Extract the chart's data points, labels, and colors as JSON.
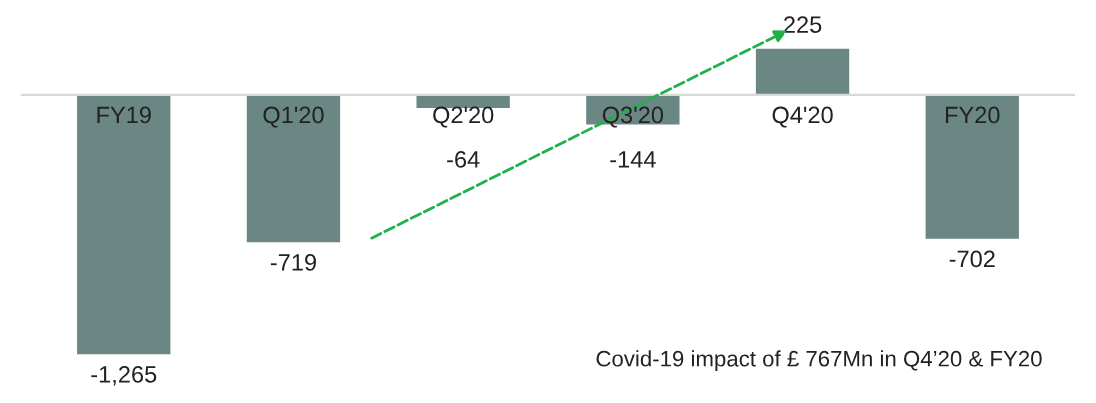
{
  "chart_data": {
    "type": "bar",
    "categories": [
      "FY19",
      "Q1'20",
      "Q2'20",
      "Q3'20",
      "Q4'20",
      "FY20"
    ],
    "values": [
      -1265,
      -719,
      -64,
      -144,
      225,
      -702
    ],
    "value_labels": [
      "-1,265",
      "-719",
      "-64",
      "-144",
      "225",
      "-702"
    ],
    "color": "#6b8784",
    "annotations": [
      "Covid-19 impact of £ 767Mn in Q4’20 & FY20"
    ]
  }
}
